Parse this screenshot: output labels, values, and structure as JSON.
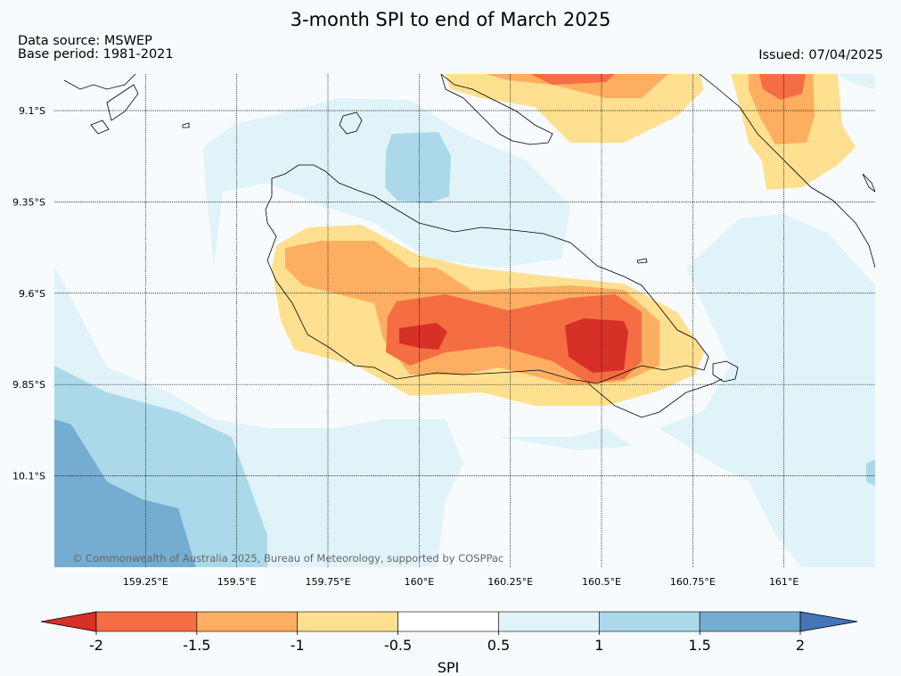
{
  "header": {
    "title": "3-month SPI to end of March 2025",
    "data_source": "Data source: MSWEP",
    "base_period": "Base period: 1981-2021",
    "issued": "Issued: 07/04/2025"
  },
  "map": {
    "lon_range": [
      159.0,
      161.25
    ],
    "lat_range": [
      -10.35,
      -9.0
    ],
    "lat_ticks": [
      {
        "value": -9.1,
        "label": "9.1°S"
      },
      {
        "value": -9.35,
        "label": "9.35°S"
      },
      {
        "value": -9.6,
        "label": "9.6°S"
      },
      {
        "value": -9.85,
        "label": "9.85°S"
      },
      {
        "value": -10.1,
        "label": "10.1°S"
      }
    ],
    "lon_ticks": [
      {
        "value": 159.25,
        "label": "159.25°E"
      },
      {
        "value": 159.5,
        "label": "159.5°E"
      },
      {
        "value": 159.75,
        "label": "159.75°E"
      },
      {
        "value": 160.0,
        "label": "160°E"
      },
      {
        "value": 160.25,
        "label": "160.25°E"
      },
      {
        "value": 160.5,
        "label": "160.5°E"
      },
      {
        "value": 160.75,
        "label": "160.75°E"
      },
      {
        "value": 161.0,
        "label": "161°E"
      }
    ],
    "copyright": "© Commonwealth of Australia 2025, Bureau of Meteorology, supported by COSPPac"
  },
  "colorbar": {
    "label": "SPI",
    "ticks": [
      "-2",
      "-1.5",
      "-1",
      "-0.5",
      "0.5",
      "1",
      "1.5",
      "2"
    ],
    "colors": [
      "#d73027",
      "#f46d43",
      "#fdae61",
      "#fee090",
      "#ffffff",
      "#e0f3f8",
      "#abd9e9",
      "#74add1",
      "#4575b4"
    ]
  }
}
